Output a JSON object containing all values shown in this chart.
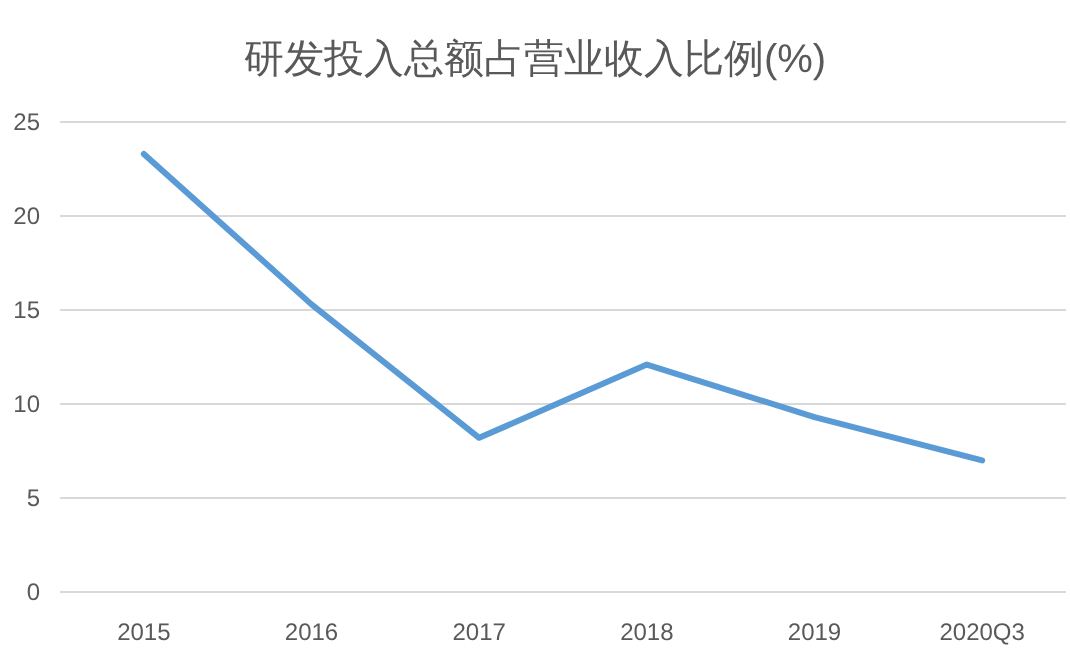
{
  "chart_data": {
    "type": "line",
    "title": "研发投入总额占营业收入比例(%)",
    "categories": [
      "2015",
      "2016",
      "2017",
      "2018",
      "2019",
      "2020Q3"
    ],
    "series": [
      {
        "color": "#5b9bd5",
        "values": [
          23.3,
          15.3,
          8.2,
          12.1,
          9.3,
          7.0
        ]
      }
    ],
    "ylim": [
      0,
      25
    ],
    "yticks": [
      0,
      5,
      10,
      15,
      20,
      25
    ],
    "grid": "y",
    "marker": "none",
    "line_style": "solid"
  }
}
